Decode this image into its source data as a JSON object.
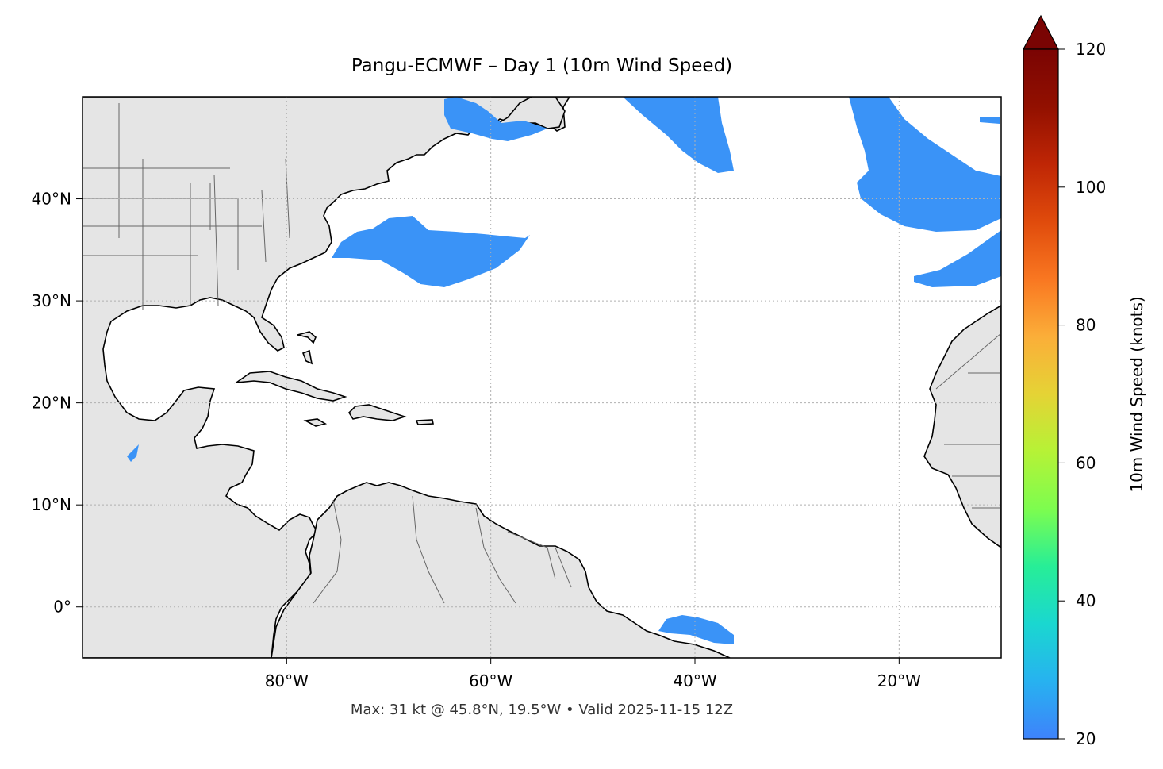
{
  "title": "Pangu-ECMWF – Day 1 (10m Wind Speed)",
  "footer": "Max: 31 kt @ 45.8°N, 19.5°W • Valid 2025-11-15 12Z",
  "map": {
    "lon_range": [
      -100,
      -10
    ],
    "lat_range": [
      -5,
      50
    ],
    "lon_ticks": [
      {
        "v": -80,
        "label": "80°W"
      },
      {
        "v": -60,
        "label": "60°W"
      },
      {
        "v": -40,
        "label": "40°W"
      },
      {
        "v": -20,
        "label": "20°W"
      }
    ],
    "lat_ticks": [
      {
        "v": 0,
        "label": "0°"
      },
      {
        "v": 10,
        "label": "10°N"
      },
      {
        "v": 20,
        "label": "20°N"
      },
      {
        "v": 30,
        "label": "30°N"
      },
      {
        "v": 40,
        "label": "40°N"
      }
    ],
    "land_color": "#e5e5e5",
    "wind_color": "#3a93f7",
    "gridlines": true
  },
  "colorbar": {
    "label": "10m Wind Speed (knots)",
    "range": [
      20,
      120
    ],
    "ticks": [
      {
        "v": 20,
        "label": "20"
      },
      {
        "v": 40,
        "label": "40"
      },
      {
        "v": 60,
        "label": "60"
      },
      {
        "v": 80,
        "label": "80"
      },
      {
        "v": 100,
        "label": "100"
      },
      {
        "v": 120,
        "label": "120"
      }
    ],
    "colors": [
      "#3e82fb",
      "#27b2f0",
      "#1ad7d0",
      "#27ee97",
      "#7dfd4f",
      "#b6f236",
      "#e5d335",
      "#fbae39",
      "#f97721",
      "#e04b0c",
      "#bf2605",
      "#921000",
      "#7a0403"
    ],
    "extend": "max"
  }
}
